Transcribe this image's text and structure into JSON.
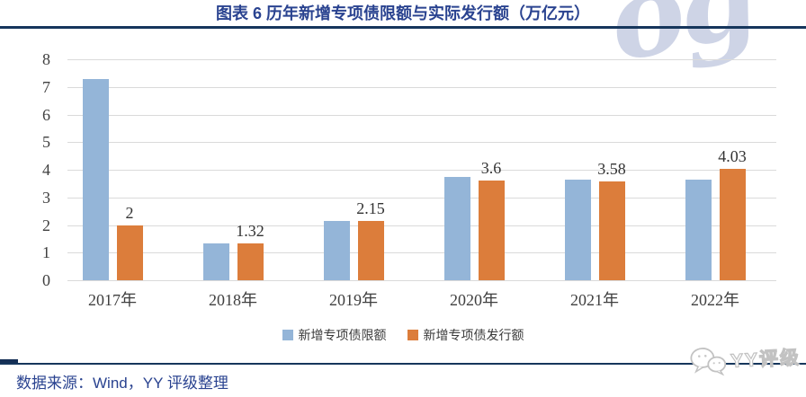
{
  "title": "图表 6 历年新增专项债限额与实际发行额（万亿元）",
  "source_note": "数据来源：Wind，YY 评级整理",
  "watermarks": {
    "top": "og",
    "bottom_label": "YY评级"
  },
  "colors": {
    "title_text": "#2A4390",
    "rule": "#16365C",
    "source_text": "#2A4390",
    "grid_line": "#DADADA",
    "axis_text": "#3F3F3F",
    "bar_limit": "#94B5D8",
    "bar_issued": "#DC7D3B",
    "watermark_top": "#A7B1D2",
    "watermark_outline": "#C2C2C2"
  },
  "chart_data": {
    "type": "bar",
    "title": "图表 6 历年新增专项债限额与实际发行额（万亿元）",
    "categories": [
      "2017年",
      "2018年",
      "2019年",
      "2020年",
      "2021年",
      "2022年"
    ],
    "series": [
      {
        "name": "新增专项债限额",
        "color": "#94B5D8",
        "values": [
          7.3,
          1.35,
          2.15,
          3.75,
          3.65,
          3.65
        ]
      },
      {
        "name": "新增专项债发行额",
        "color": "#DC7D3B",
        "values": [
          2,
          1.32,
          2.15,
          3.6,
          3.58,
          4.03
        ],
        "data_labels": [
          "2",
          "1.32",
          "2.15",
          "3.6",
          "3.58",
          "4.03"
        ]
      }
    ],
    "xlabel": "",
    "ylabel": "",
    "ylim": [
      0,
      8
    ],
    "yticks": [
      0,
      1,
      2,
      3,
      4,
      5,
      6,
      7,
      8
    ],
    "grid": true,
    "legend_position": "bottom"
  },
  "legend": [
    {
      "label": "新增专项债限额",
      "color": "#94B5D8"
    },
    {
      "label": "新增专项债发行额",
      "color": "#DC7D3B"
    }
  ]
}
